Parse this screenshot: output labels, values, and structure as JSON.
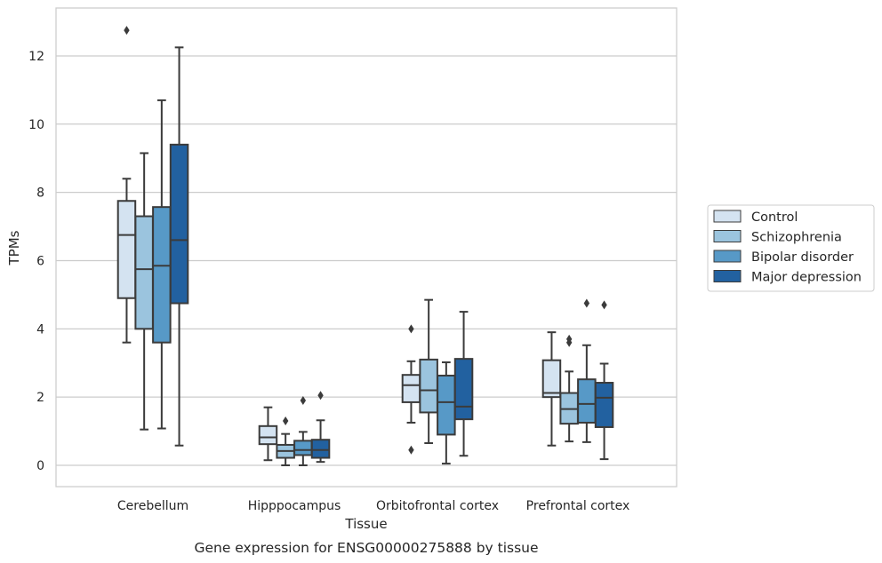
{
  "chart_data": {
    "type": "box",
    "caption": "Gene expression for ENSG00000275888 by tissue",
    "xlabel": "Tissue",
    "ylabel": "TPMs",
    "ylim": [
      -0.6,
      13.4
    ],
    "yticks": [
      0,
      2,
      4,
      6,
      8,
      10,
      12
    ],
    "ytick_labels": [
      "0",
      "2",
      "4",
      "6",
      "8",
      "10",
      "12"
    ],
    "grid": "horizontal",
    "legend_position": "right",
    "categories": [
      "Cerebellum",
      "Hipppocampus",
      "Orbitofrontal cortex",
      "Prefrontal cortex"
    ],
    "series": [
      {
        "name": "Control",
        "color": "#d4e3f1",
        "boxes": [
          {
            "whisker_low": 3.6,
            "q1": 4.9,
            "median": 6.75,
            "q3": 7.75,
            "whisker_high": 8.4,
            "outliers": [
              12.75
            ]
          },
          {
            "whisker_low": 0.15,
            "q1": 0.62,
            "median": 0.82,
            "q3": 1.15,
            "whisker_high": 1.7,
            "outliers": []
          },
          {
            "whisker_low": 1.25,
            "q1": 1.85,
            "median": 2.35,
            "q3": 2.65,
            "whisker_high": 3.05,
            "outliers": [
              4.0,
              0.45
            ]
          },
          {
            "whisker_low": 0.58,
            "q1": 2.0,
            "median": 2.12,
            "q3": 3.08,
            "whisker_high": 3.9,
            "outliers": []
          }
        ]
      },
      {
        "name": "Schizophrenia",
        "color": "#9bc4de",
        "boxes": [
          {
            "whisker_low": 1.05,
            "q1": 4.0,
            "median": 5.75,
            "q3": 7.3,
            "whisker_high": 9.15,
            "outliers": []
          },
          {
            "whisker_low": 0.0,
            "q1": 0.22,
            "median": 0.42,
            "q3": 0.6,
            "whisker_high": 0.92,
            "outliers": [
              1.3
            ]
          },
          {
            "whisker_low": 0.65,
            "q1": 1.55,
            "median": 2.2,
            "q3": 3.1,
            "whisker_high": 4.85,
            "outliers": []
          },
          {
            "whisker_low": 0.7,
            "q1": 1.22,
            "median": 1.65,
            "q3": 2.12,
            "whisker_high": 2.75,
            "outliers": [
              3.6,
              3.7
            ]
          }
        ]
      },
      {
        "name": "Bipolar disorder",
        "color": "#5799c7",
        "boxes": [
          {
            "whisker_low": 1.08,
            "q1": 3.6,
            "median": 5.85,
            "q3": 7.57,
            "whisker_high": 10.7,
            "outliers": []
          },
          {
            "whisker_low": 0.0,
            "q1": 0.3,
            "median": 0.45,
            "q3": 0.72,
            "whisker_high": 0.98,
            "outliers": [
              1.9
            ]
          },
          {
            "whisker_low": 0.05,
            "q1": 0.9,
            "median": 1.85,
            "q3": 2.63,
            "whisker_high": 3.02,
            "outliers": []
          },
          {
            "whisker_low": 0.68,
            "q1": 1.25,
            "median": 1.8,
            "q3": 2.52,
            "whisker_high": 3.52,
            "outliers": [
              4.75
            ]
          }
        ]
      },
      {
        "name": "Major depression",
        "color": "#2261a0",
        "boxes": [
          {
            "whisker_low": 0.58,
            "q1": 4.75,
            "median": 6.6,
            "q3": 9.4,
            "whisker_high": 12.25,
            "outliers": []
          },
          {
            "whisker_low": 0.1,
            "q1": 0.22,
            "median": 0.45,
            "q3": 0.75,
            "whisker_high": 1.32,
            "outliers": [
              2.05
            ]
          },
          {
            "whisker_low": 0.28,
            "q1": 1.35,
            "median": 1.72,
            "q3": 3.12,
            "whisker_high": 4.5,
            "outliers": []
          },
          {
            "whisker_low": 0.18,
            "q1": 1.12,
            "median": 1.98,
            "q3": 2.42,
            "whisker_high": 2.98,
            "outliers": [
              4.7
            ]
          }
        ]
      }
    ]
  }
}
